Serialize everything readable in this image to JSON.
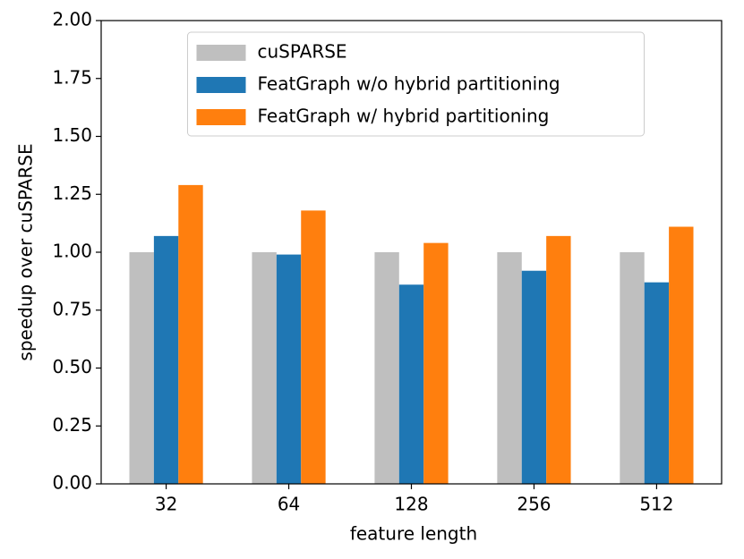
{
  "chart_data": {
    "type": "bar",
    "x_label": "feature length",
    "y_label": "speedup over cuSPARSE",
    "categories": [
      "32",
      "64",
      "128",
      "256",
      "512"
    ],
    "series": [
      {
        "name": "cuSPARSE",
        "color": "#bfbfbf",
        "values": [
          1.0,
          1.0,
          1.0,
          1.0,
          1.0
        ]
      },
      {
        "name": "FeatGraph w/o hybrid partitioning",
        "color": "#1f77b4",
        "values": [
          1.07,
          0.99,
          0.86,
          0.92,
          0.87
        ]
      },
      {
        "name": "FeatGraph w/ hybrid partitioning",
        "color": "#ff7f0e",
        "values": [
          1.29,
          1.18,
          1.04,
          1.07,
          1.11
        ]
      }
    ],
    "ylim": [
      0,
      2
    ],
    "yticks": [
      {
        "value": 0,
        "label": "0.00"
      },
      {
        "value": 0.25,
        "label": "0.25"
      },
      {
        "value": 0.5,
        "label": "0.50"
      },
      {
        "value": 0.75,
        "label": "0.75"
      },
      {
        "value": 1,
        "label": "1.00"
      },
      {
        "value": 1.25,
        "label": "1.25"
      },
      {
        "value": 1.5,
        "label": "1.50"
      },
      {
        "value": 1.75,
        "label": "1.75"
      },
      {
        "value": 2,
        "label": "2.00"
      }
    ],
    "legend": "upper center"
  }
}
